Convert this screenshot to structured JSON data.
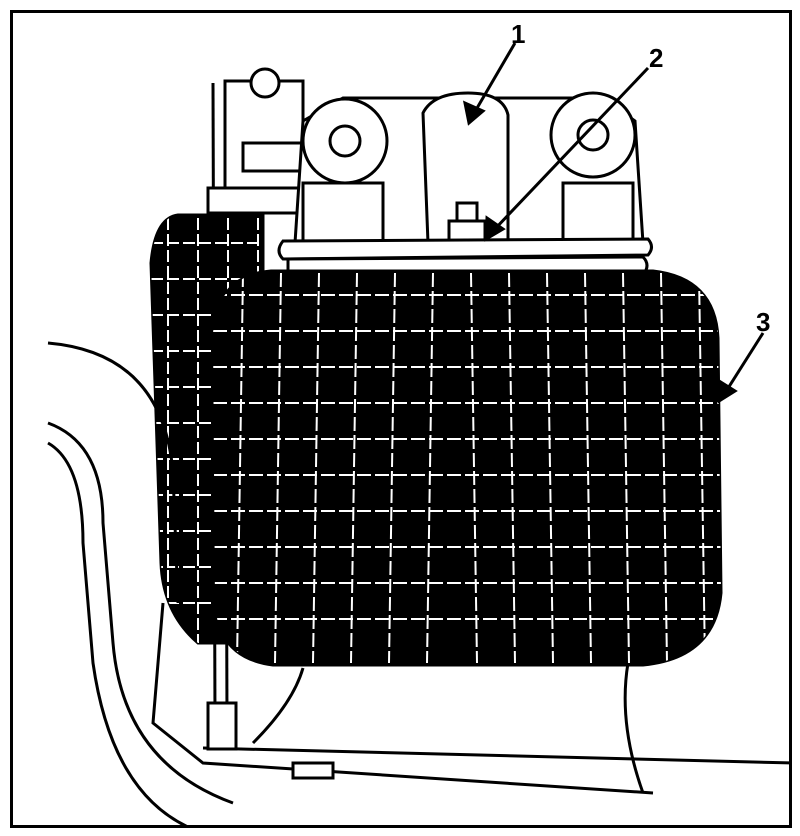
{
  "figure": {
    "callouts": [
      {
        "id": "1",
        "text": "1"
      },
      {
        "id": "2",
        "text": "2"
      },
      {
        "id": "3",
        "text": "3"
      }
    ]
  },
  "colors": {
    "ink": "#000000",
    "paper": "#ffffff",
    "bag_netting": "#ffffff"
  }
}
